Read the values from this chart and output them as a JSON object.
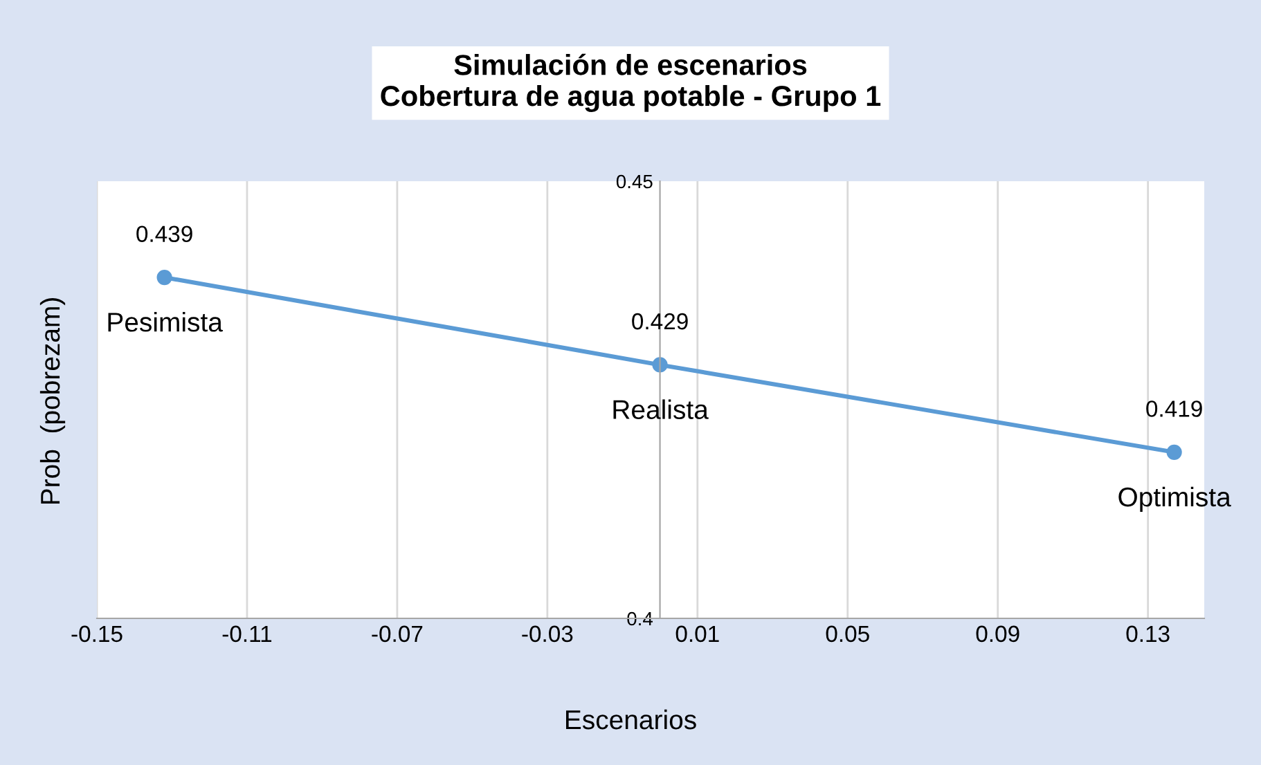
{
  "chart_data": {
    "type": "line",
    "title": "Simulación de escenarios\nCobertura de agua potable - Grupo 1",
    "xlabel": "Escenarios",
    "ylabel": "Prob  (pobrezam)",
    "x": [
      -0.132,
      0,
      0.137
    ],
    "series": [
      {
        "color": "#5b9bd5",
        "values": [
          0.439,
          0.429,
          0.419
        ]
      }
    ],
    "data_labels": true,
    "marker": "circle",
    "line_style": "solid",
    "grid": "x",
    "legend": false,
    "xlim": [
      -0.15,
      0.145
    ],
    "xticks": [
      -0.15,
      -0.11,
      -0.07,
      -0.03,
      0.01,
      0.05,
      0.09,
      0.13
    ],
    "ylim": [
      0.4,
      0.45
    ],
    "yticks": [
      0.4,
      0.45
    ],
    "annotations": [
      {
        "text": "Pesimista",
        "x": -0.132,
        "y": 0.439
      },
      {
        "text": "Realista",
        "x": 0,
        "y": 0.429
      },
      {
        "text": "Optimista",
        "x": 0.137,
        "y": 0.419
      }
    ]
  }
}
